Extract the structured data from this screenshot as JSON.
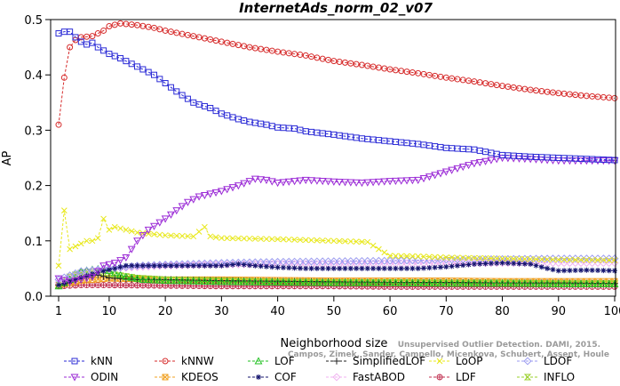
{
  "chart_data": {
    "type": "line",
    "title": "InternetAds_norm_02_v07",
    "xlabel": "Neighborhood size",
    "ylabel": "AP",
    "xlim": [
      1,
      100
    ],
    "ylim": [
      0,
      0.5
    ],
    "xticks": [
      1,
      10,
      20,
      30,
      40,
      50,
      60,
      70,
      80,
      90,
      100
    ],
    "yticks": [
      0.0,
      0.1,
      0.2,
      0.3,
      0.4,
      0.5
    ],
    "grid": false,
    "legend_position": "bottom",
    "credit": [
      "Unsupervised Outlier Detection. DAMI, 2015.",
      "Campos, Zimek, Sander, Campello, Micenkova, Schubert, Assent, Houle"
    ],
    "series": [
      {
        "name": "kNN",
        "color": "#2b2bd6",
        "marker": "square",
        "dashed": true,
        "points": [
          [
            1,
            0.475
          ],
          [
            2,
            0.478
          ],
          [
            3,
            0.478
          ],
          [
            4,
            0.468
          ],
          [
            5,
            0.46
          ],
          [
            6,
            0.455
          ],
          [
            7,
            0.458
          ],
          [
            8,
            0.45
          ],
          [
            10,
            0.438
          ],
          [
            12,
            0.43
          ],
          [
            15,
            0.415
          ],
          [
            18,
            0.4
          ],
          [
            20,
            0.385
          ],
          [
            22,
            0.37
          ],
          [
            25,
            0.35
          ],
          [
            28,
            0.34
          ],
          [
            30,
            0.33
          ],
          [
            33,
            0.32
          ],
          [
            35,
            0.315
          ],
          [
            38,
            0.31
          ],
          [
            40,
            0.305
          ],
          [
            43,
            0.303
          ],
          [
            45,
            0.298
          ],
          [
            50,
            0.292
          ],
          [
            55,
            0.285
          ],
          [
            60,
            0.28
          ],
          [
            65,
            0.275
          ],
          [
            70,
            0.268
          ],
          [
            75,
            0.265
          ],
          [
            80,
            0.255
          ],
          [
            85,
            0.252
          ],
          [
            90,
            0.25
          ],
          [
            95,
            0.248
          ],
          [
            100,
            0.246
          ]
        ]
      },
      {
        "name": "kNNW",
        "color": "#d62b2b",
        "marker": "circle",
        "dashed": true,
        "points": [
          [
            1,
            0.31
          ],
          [
            2,
            0.395
          ],
          [
            3,
            0.45
          ],
          [
            4,
            0.463
          ],
          [
            5,
            0.468
          ],
          [
            7,
            0.47
          ],
          [
            9,
            0.48
          ],
          [
            10,
            0.488
          ],
          [
            12,
            0.493
          ],
          [
            15,
            0.49
          ],
          [
            18,
            0.485
          ],
          [
            20,
            0.48
          ],
          [
            25,
            0.47
          ],
          [
            30,
            0.46
          ],
          [
            35,
            0.45
          ],
          [
            40,
            0.442
          ],
          [
            45,
            0.435
          ],
          [
            50,
            0.425
          ],
          [
            55,
            0.418
          ],
          [
            60,
            0.41
          ],
          [
            65,
            0.403
          ],
          [
            70,
            0.395
          ],
          [
            75,
            0.388
          ],
          [
            80,
            0.38
          ],
          [
            85,
            0.373
          ],
          [
            90,
            0.367
          ],
          [
            95,
            0.362
          ],
          [
            100,
            0.358
          ]
        ]
      },
      {
        "name": "LOF",
        "color": "#22c022",
        "marker": "triangle-up",
        "dashed": true,
        "points": [
          [
            1,
            0.018
          ],
          [
            3,
            0.03
          ],
          [
            5,
            0.045
          ],
          [
            7,
            0.048
          ],
          [
            9,
            0.05
          ],
          [
            11,
            0.042
          ],
          [
            13,
            0.035
          ],
          [
            16,
            0.03
          ],
          [
            20,
            0.028
          ],
          [
            30,
            0.026
          ],
          [
            40,
            0.025
          ],
          [
            50,
            0.024
          ],
          [
            60,
            0.024
          ],
          [
            70,
            0.023
          ],
          [
            80,
            0.023
          ],
          [
            90,
            0.022
          ],
          [
            100,
            0.022
          ]
        ]
      },
      {
        "name": "SimplifiedLOF",
        "color": "#222222",
        "marker": "plus",
        "dashed": true,
        "points": [
          [
            1,
            0.02
          ],
          [
            3,
            0.025
          ],
          [
            5,
            0.035
          ],
          [
            8,
            0.038
          ],
          [
            10,
            0.033
          ],
          [
            15,
            0.03
          ],
          [
            20,
            0.03
          ],
          [
            30,
            0.028
          ],
          [
            40,
            0.027
          ],
          [
            50,
            0.026
          ],
          [
            60,
            0.025
          ],
          [
            70,
            0.025
          ],
          [
            80,
            0.024
          ],
          [
            90,
            0.024
          ],
          [
            100,
            0.023
          ]
        ]
      },
      {
        "name": "LoOP",
        "color": "#e8e81a",
        "marker": "x",
        "dashed": true,
        "points": [
          [
            1,
            0.055
          ],
          [
            2,
            0.155
          ],
          [
            3,
            0.085
          ],
          [
            4,
            0.09
          ],
          [
            5,
            0.095
          ],
          [
            6,
            0.1
          ],
          [
            7,
            0.1
          ],
          [
            8,
            0.105
          ],
          [
            9,
            0.14
          ],
          [
            10,
            0.12
          ],
          [
            11,
            0.125
          ],
          [
            13,
            0.12
          ],
          [
            15,
            0.115
          ],
          [
            20,
            0.11
          ],
          [
            25,
            0.108
          ],
          [
            27,
            0.125
          ],
          [
            28,
            0.108
          ],
          [
            30,
            0.105
          ],
          [
            40,
            0.103
          ],
          [
            50,
            0.1
          ],
          [
            56,
            0.098
          ],
          [
            58,
            0.085
          ],
          [
            60,
            0.073
          ],
          [
            65,
            0.072
          ],
          [
            70,
            0.07
          ],
          [
            80,
            0.068
          ],
          [
            90,
            0.066
          ],
          [
            100,
            0.065
          ]
        ]
      },
      {
        "name": "LDOF",
        "color": "#9b9bf0",
        "marker": "diamond",
        "dashed": true,
        "points": [
          [
            1,
            0.03
          ],
          [
            5,
            0.045
          ],
          [
            10,
            0.05
          ],
          [
            15,
            0.055
          ],
          [
            20,
            0.057
          ],
          [
            30,
            0.06
          ],
          [
            40,
            0.062
          ],
          [
            50,
            0.063
          ],
          [
            60,
            0.064
          ],
          [
            70,
            0.066
          ],
          [
            80,
            0.067
          ],
          [
            90,
            0.068
          ],
          [
            100,
            0.068
          ]
        ]
      },
      {
        "name": "ODIN",
        "color": "#9b2bd6",
        "marker": "triangle-down",
        "dashed": true,
        "points": [
          [
            1,
            0.032
          ],
          [
            3,
            0.026
          ],
          [
            5,
            0.03
          ],
          [
            7,
            0.035
          ],
          [
            9,
            0.055
          ],
          [
            11,
            0.06
          ],
          [
            13,
            0.07
          ],
          [
            15,
            0.1
          ],
          [
            17,
            0.12
          ],
          [
            20,
            0.14
          ],
          [
            22,
            0.155
          ],
          [
            24,
            0.17
          ],
          [
            26,
            0.18
          ],
          [
            28,
            0.185
          ],
          [
            30,
            0.19
          ],
          [
            33,
            0.2
          ],
          [
            36,
            0.212
          ],
          [
            38,
            0.21
          ],
          [
            40,
            0.205
          ],
          [
            45,
            0.21
          ],
          [
            50,
            0.207
          ],
          [
            55,
            0.205
          ],
          [
            60,
            0.208
          ],
          [
            65,
            0.21
          ],
          [
            70,
            0.225
          ],
          [
            75,
            0.24
          ],
          [
            80,
            0.25
          ],
          [
            85,
            0.248
          ],
          [
            90,
            0.245
          ],
          [
            95,
            0.245
          ],
          [
            100,
            0.245
          ]
        ]
      },
      {
        "name": "KDEOS",
        "color": "#f0a020",
        "marker": "square-x",
        "dashed": true,
        "points": [
          [
            1,
            0.02
          ],
          [
            5,
            0.028
          ],
          [
            10,
            0.032
          ],
          [
            20,
            0.03
          ],
          [
            30,
            0.03
          ],
          [
            40,
            0.029
          ],
          [
            50,
            0.028
          ],
          [
            60,
            0.028
          ],
          [
            70,
            0.028
          ],
          [
            80,
            0.027
          ],
          [
            90,
            0.027
          ],
          [
            100,
            0.027
          ]
        ]
      },
      {
        "name": "COF",
        "color": "#14146e",
        "marker": "asterisk",
        "dashed": true,
        "points": [
          [
            1,
            0.02
          ],
          [
            4,
            0.03
          ],
          [
            7,
            0.04
          ],
          [
            10,
            0.048
          ],
          [
            13,
            0.055
          ],
          [
            20,
            0.055
          ],
          [
            30,
            0.055
          ],
          [
            33,
            0.058
          ],
          [
            36,
            0.055
          ],
          [
            40,
            0.052
          ],
          [
            45,
            0.05
          ],
          [
            50,
            0.05
          ],
          [
            55,
            0.05
          ],
          [
            60,
            0.05
          ],
          [
            65,
            0.05
          ],
          [
            70,
            0.053
          ],
          [
            75,
            0.058
          ],
          [
            80,
            0.06
          ],
          [
            85,
            0.058
          ],
          [
            88,
            0.05
          ],
          [
            90,
            0.046
          ],
          [
            95,
            0.047
          ],
          [
            100,
            0.046
          ]
        ]
      },
      {
        "name": "FastABOD",
        "color": "#f0b0f0",
        "marker": "diamond",
        "dashed": true,
        "points": [
          [
            1,
            0.025
          ],
          [
            5,
            0.04
          ],
          [
            10,
            0.05
          ],
          [
            20,
            0.055
          ],
          [
            30,
            0.057
          ],
          [
            40,
            0.058
          ],
          [
            50,
            0.058
          ],
          [
            60,
            0.059
          ],
          [
            70,
            0.059
          ],
          [
            80,
            0.06
          ],
          [
            90,
            0.06
          ],
          [
            100,
            0.06
          ]
        ]
      },
      {
        "name": "LDF",
        "color": "#c03050",
        "marker": "circle-cross",
        "dashed": true,
        "points": [
          [
            1,
            0.018
          ],
          [
            5,
            0.02
          ],
          [
            10,
            0.02
          ],
          [
            20,
            0.019
          ],
          [
            30,
            0.018
          ],
          [
            40,
            0.018
          ],
          [
            50,
            0.018
          ],
          [
            60,
            0.017
          ],
          [
            70,
            0.017
          ],
          [
            80,
            0.017
          ],
          [
            90,
            0.017
          ],
          [
            100,
            0.017
          ]
        ]
      },
      {
        "name": "INFLO",
        "color": "#9ad02a",
        "marker": "hourglass",
        "dashed": true,
        "points": [
          [
            1,
            0.02
          ],
          [
            3,
            0.035
          ],
          [
            5,
            0.042
          ],
          [
            8,
            0.045
          ],
          [
            10,
            0.04
          ],
          [
            15,
            0.033
          ],
          [
            20,
            0.03
          ],
          [
            30,
            0.028
          ],
          [
            40,
            0.026
          ],
          [
            50,
            0.025
          ],
          [
            60,
            0.025
          ],
          [
            70,
            0.024
          ],
          [
            80,
            0.024
          ],
          [
            90,
            0.023
          ],
          [
            100,
            0.023
          ]
        ]
      }
    ]
  }
}
